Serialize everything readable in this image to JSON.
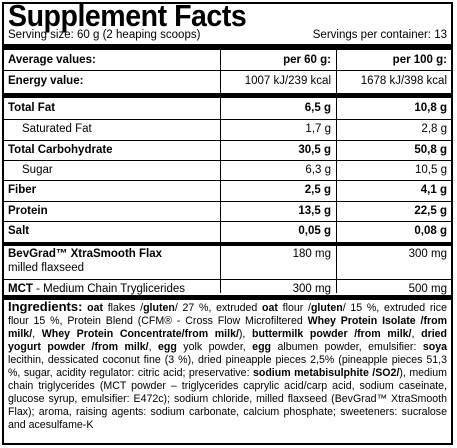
{
  "title": "Supplement Facts",
  "serving_size": "Serving size: 60 g (2 heaping scoops)",
  "servings_per_container": "Servings per container: 13",
  "header": {
    "label": "Average values:",
    "col1": "per 60 g:",
    "col2": "per 100 g:"
  },
  "rows": [
    {
      "label": "Energy value:",
      "v1": "1007 kJ/239 kcal",
      "v2": "1678 kJ/398 kcal"
    },
    {
      "label": "Total Fat",
      "v1": "6,5 g",
      "v2": "10,8 g"
    },
    {
      "label": "Saturated Fat",
      "v1": "1,7 g",
      "v2": "2,8 g"
    },
    {
      "label": "Total Carbohydrate",
      "v1": "30,5 g",
      "v2": "50,8 g"
    },
    {
      "label": "Sugar",
      "v1": "6,3 g",
      "v2": "10,5 g"
    },
    {
      "label": "Fiber",
      "v1": "2,5 g",
      "v2": "4,1 g"
    },
    {
      "label": "Protein",
      "v1": "13,5 g",
      "v2": "22,5 g"
    },
    {
      "label": "Salt",
      "v1": "0,05 g",
      "v2": "0,08 g"
    },
    {
      "label": "BevGrad™ XtraSmooth Flax",
      "sublabel": "milled flaxseed",
      "v1": "180 mg",
      "v2": "300 mg"
    },
    {
      "label": "MCT",
      "label_suffix": " - Medium Chain Tryglicerides",
      "v1": "300 mg",
      "v2": "500 mg"
    }
  ],
  "ingredients": {
    "heading": "Ingredients:",
    "parts": [
      {
        "t": " "
      },
      {
        "t": "oat",
        "b": true
      },
      {
        "t": " flakes /"
      },
      {
        "t": "gluten",
        "b": true
      },
      {
        "t": "/ 27 %, extruded "
      },
      {
        "t": "oat",
        "b": true
      },
      {
        "t": " flour /"
      },
      {
        "t": "gluten",
        "b": true
      },
      {
        "t": "/ 15 %, extruded rice flour 15 %, Protein Blend (CFM® - Cross Flow Microfiltered "
      },
      {
        "t": "Whey Protein Isolate /from milk/",
        "b": true
      },
      {
        "t": ", "
      },
      {
        "t": "Whey Protein Concentrate/from milk/",
        "b": true
      },
      {
        "t": "), "
      },
      {
        "t": "buttermilk powder /from milk/",
        "b": true
      },
      {
        "t": ", "
      },
      {
        "t": "dried yogurt powder /from milk/",
        "b": true
      },
      {
        "t": ", "
      },
      {
        "t": "egg",
        "b": true
      },
      {
        "t": " yolk powder, "
      },
      {
        "t": "egg",
        "b": true
      },
      {
        "t": " albumen powder, emulsifier: "
      },
      {
        "t": "soya",
        "b": true
      },
      {
        "t": " lecithin, dessicated coconut fine (3 %), dried pineapple pieces 2,5% (pineapple pieces 51,3 %, sugar, acidity regulator: citric acid; preservative: "
      },
      {
        "t": "sodium metabisulphite /SO2/",
        "b": true
      },
      {
        "t": "), medium chain triglycerides (MCT powder – triglycerides caprylic acid/carp acid, sodium caseinate, glucose syrup, emulsifier: E472c); sodium chloride, milled flaxseed (BevGrad™ XtraSmooth Flax); aroma, raising agents: sodium carbonate, calcium phosphate; sweeteners: sucralose and acesulfame-K"
      }
    ]
  }
}
